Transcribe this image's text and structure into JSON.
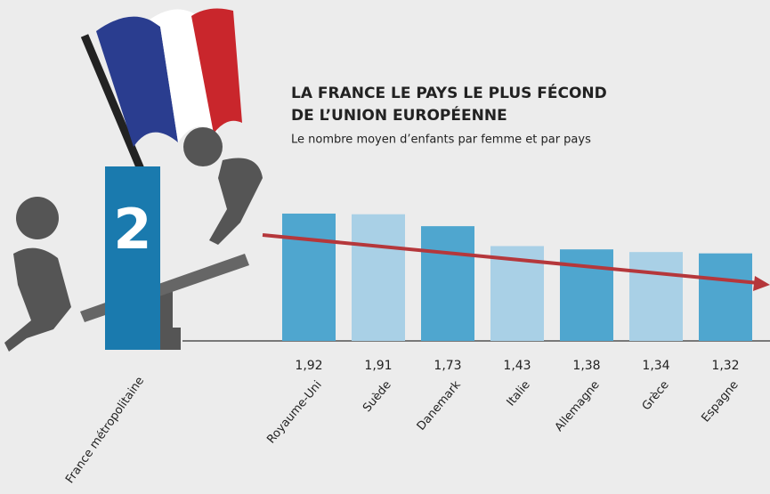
{
  "chart_data": {
    "type": "bar",
    "title": "LA FRANCE LE PAYS LE PLUS FÉCOND",
    "title_line2": "DE L’UNION EUROPÉENNE",
    "subtitle": "Le nombre moyen d’enfants par femme et par pays",
    "categories": [
      "France métropolitaine",
      "Royaume-Uni",
      "Suède",
      "Danemark",
      "Italie",
      "Allemagne",
      "Grèce",
      "Espagne"
    ],
    "values": [
      2,
      1.92,
      1.91,
      1.73,
      1.43,
      1.38,
      1.34,
      1.32
    ],
    "value_labels": [
      "2",
      "1,92",
      "1,91",
      "1,73",
      "1,43",
      "1,38",
      "1,34",
      "1,32"
    ],
    "colors": [
      "#1a7aae",
      "#4fa6cf",
      "#a9d0e6",
      "#4fa6cf",
      "#a9d0e6",
      "#4fa6cf",
      "#a9d0e6",
      "#4fa6cf"
    ]
  }
}
